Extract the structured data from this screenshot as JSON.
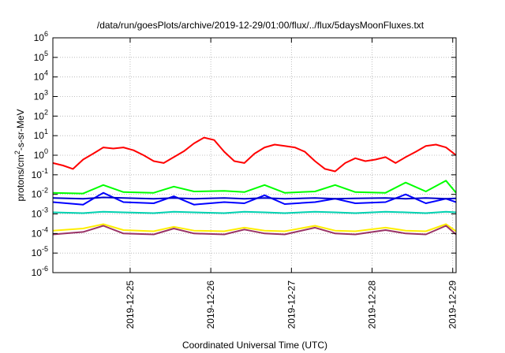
{
  "chart_data": {
    "type": "line",
    "title": "/data/run/goesPlots/archive/2019-12-29/01:00/flux/../flux/5daysMoonFluxes.txt",
    "xlabel": "Coordinated Universal Time (UTC)",
    "ylabel": {
      "base": "protons/cm",
      "sup": "2",
      "rest": "-s-sr-MeV"
    },
    "x_range": [
      "2019-12-24T01:00",
      "2019-12-29T01:00"
    ],
    "x_ticks": [
      "2019-12-25",
      "2019-12-26",
      "2019-12-27",
      "2019-12-28",
      "2019-12-29"
    ],
    "y_scale": "log",
    "ylim": [
      1e-06,
      1000000.0
    ],
    "y_ticks": [
      {
        "exp": "-6",
        "value": 1e-06
      },
      {
        "exp": "-5",
        "value": 1e-05
      },
      {
        "exp": "-4",
        "value": 0.0001
      },
      {
        "exp": "-3",
        "value": 0.001
      },
      {
        "exp": "-2",
        "value": 0.01
      },
      {
        "exp": "-1",
        "value": 0.1
      },
      {
        "exp": "0",
        "value": 1
      },
      {
        "exp": "1",
        "value": 10.0
      },
      {
        "exp": "2",
        "value": 100.0
      },
      {
        "exp": "3",
        "value": 1000.0
      },
      {
        "exp": "4",
        "value": 10000.0
      },
      {
        "exp": "5",
        "value": 100000.0
      },
      {
        "exp": "6",
        "value": 1000000.0
      }
    ],
    "grid": true,
    "series": [
      {
        "color": "#ff0000",
        "x": [
          "2019-12-24T01:00",
          "2019-12-24T04:00",
          "2019-12-24T07:00",
          "2019-12-24T10:00",
          "2019-12-24T13:00",
          "2019-12-24T16:00",
          "2019-12-24T19:00",
          "2019-12-24T22:00",
          "2019-12-25T01:00",
          "2019-12-25T04:00",
          "2019-12-25T07:00",
          "2019-12-25T10:00",
          "2019-12-25T13:00",
          "2019-12-25T16:00",
          "2019-12-25T19:00",
          "2019-12-25T22:00",
          "2019-12-26T01:00",
          "2019-12-26T04:00",
          "2019-12-26T07:00",
          "2019-12-26T10:00",
          "2019-12-26T13:00",
          "2019-12-26T16:00",
          "2019-12-26T19:00",
          "2019-12-26T22:00",
          "2019-12-27T01:00",
          "2019-12-27T04:00",
          "2019-12-27T07:00",
          "2019-12-27T10:00",
          "2019-12-27T13:00",
          "2019-12-27T16:00",
          "2019-12-27T19:00",
          "2019-12-27T22:00",
          "2019-12-28T01:00",
          "2019-12-28T04:00",
          "2019-12-28T07:00",
          "2019-12-28T10:00",
          "2019-12-28T13:00",
          "2019-12-28T16:00",
          "2019-12-28T19:00",
          "2019-12-28T22:00",
          "2019-12-29T01:00"
        ],
        "y": [
          0.4,
          0.3,
          0.2,
          0.6,
          1.2,
          2.5,
          2.2,
          2.5,
          1.8,
          1.0,
          0.5,
          0.4,
          0.8,
          1.6,
          4,
          8,
          6,
          1.5,
          0.5,
          0.4,
          1.2,
          2.5,
          3.5,
          3,
          2.5,
          1.5,
          0.5,
          0.2,
          0.15,
          0.4,
          0.7,
          0.5,
          0.6,
          0.8,
          0.4,
          0.8,
          1.5,
          3,
          3.5,
          2.5,
          1.0
        ]
      },
      {
        "color": "#00ff00",
        "x": [
          "2019-12-24T01:00",
          "2019-12-24T10:00",
          "2019-12-24T16:00",
          "2019-12-24T22:00",
          "2019-12-25T07:00",
          "2019-12-25T13:00",
          "2019-12-25T19:00",
          "2019-12-26T04:00",
          "2019-12-26T10:00",
          "2019-12-26T16:00",
          "2019-12-26T22:00",
          "2019-12-27T07:00",
          "2019-12-27T13:00",
          "2019-12-27T19:00",
          "2019-12-28T04:00",
          "2019-12-28T10:00",
          "2019-12-28T16:00",
          "2019-12-28T22:00",
          "2019-12-29T01:00"
        ],
        "y": [
          0.012,
          0.011,
          0.03,
          0.013,
          0.012,
          0.025,
          0.014,
          0.015,
          0.013,
          0.03,
          0.012,
          0.014,
          0.03,
          0.013,
          0.012,
          0.04,
          0.014,
          0.05,
          0.012
        ]
      },
      {
        "color": "#0000ff",
        "x": [
          "2019-12-24T01:00",
          "2019-12-24T10:00",
          "2019-12-24T16:00",
          "2019-12-24T22:00",
          "2019-12-25T07:00",
          "2019-12-25T13:00",
          "2019-12-25T19:00",
          "2019-12-26T04:00",
          "2019-12-26T10:00",
          "2019-12-26T16:00",
          "2019-12-26T22:00",
          "2019-12-27T07:00",
          "2019-12-27T13:00",
          "2019-12-27T19:00",
          "2019-12-28T04:00",
          "2019-12-28T10:00",
          "2019-12-28T16:00",
          "2019-12-28T22:00",
          "2019-12-29T01:00"
        ],
        "y": [
          0.004,
          0.003,
          0.012,
          0.004,
          0.0035,
          0.008,
          0.003,
          0.004,
          0.0035,
          0.009,
          0.0032,
          0.004,
          0.006,
          0.0035,
          0.004,
          0.01,
          0.0035,
          0.006,
          0.004
        ]
      },
      {
        "color": "#0000cc",
        "x": [
          "2019-12-24T01:00",
          "2019-12-24T10:00",
          "2019-12-24T16:00",
          "2019-12-24T22:00",
          "2019-12-25T07:00",
          "2019-12-25T13:00",
          "2019-12-25T19:00",
          "2019-12-26T04:00",
          "2019-12-26T10:00",
          "2019-12-26T16:00",
          "2019-12-26T22:00",
          "2019-12-27T07:00",
          "2019-12-27T13:00",
          "2019-12-27T19:00",
          "2019-12-28T04:00",
          "2019-12-28T10:00",
          "2019-12-28T16:00",
          "2019-12-28T22:00",
          "2019-12-29T01:00"
        ],
        "y": [
          0.0065,
          0.006,
          0.007,
          0.0065,
          0.006,
          0.0065,
          0.006,
          0.0065,
          0.006,
          0.0065,
          0.006,
          0.0065,
          0.006,
          0.0062,
          0.0065,
          0.006,
          0.0065,
          0.006,
          0.0062
        ]
      },
      {
        "color": "#00d0b0",
        "x": [
          "2019-12-24T01:00",
          "2019-12-24T10:00",
          "2019-12-24T16:00",
          "2019-12-24T22:00",
          "2019-12-25T07:00",
          "2019-12-25T13:00",
          "2019-12-25T19:00",
          "2019-12-26T04:00",
          "2019-12-26T10:00",
          "2019-12-26T16:00",
          "2019-12-26T22:00",
          "2019-12-27T07:00",
          "2019-12-27T13:00",
          "2019-12-27T19:00",
          "2019-12-28T04:00",
          "2019-12-28T10:00",
          "2019-12-28T16:00",
          "2019-12-28T22:00",
          "2019-12-29T01:00"
        ],
        "y": [
          0.0012,
          0.0011,
          0.0013,
          0.0012,
          0.0011,
          0.0013,
          0.0012,
          0.0011,
          0.0013,
          0.0012,
          0.0011,
          0.0013,
          0.0012,
          0.0011,
          0.0013,
          0.0012,
          0.0011,
          0.0013,
          0.0012
        ]
      },
      {
        "color": "#ffee00",
        "x": [
          "2019-12-24T01:00",
          "2019-12-24T10:00",
          "2019-12-24T16:00",
          "2019-12-24T22:00",
          "2019-12-25T07:00",
          "2019-12-25T13:00",
          "2019-12-25T19:00",
          "2019-12-26T04:00",
          "2019-12-26T10:00",
          "2019-12-26T16:00",
          "2019-12-26T22:00",
          "2019-12-27T07:00",
          "2019-12-27T13:00",
          "2019-12-27T19:00",
          "2019-12-28T04:00",
          "2019-12-28T10:00",
          "2019-12-28T16:00",
          "2019-12-28T22:00",
          "2019-12-29T01:00"
        ],
        "y": [
          0.00014,
          0.00018,
          0.0003,
          0.00015,
          0.00013,
          0.00022,
          0.00014,
          0.00013,
          0.0002,
          0.00014,
          0.00013,
          0.00025,
          0.00014,
          0.00013,
          0.0002,
          0.00014,
          0.00013,
          0.0003,
          0.00013
        ]
      },
      {
        "color": "#993366",
        "x": [
          "2019-12-24T01:00",
          "2019-12-24T10:00",
          "2019-12-24T16:00",
          "2019-12-24T22:00",
          "2019-12-25T07:00",
          "2019-12-25T13:00",
          "2019-12-25T19:00",
          "2019-12-26T04:00",
          "2019-12-26T10:00",
          "2019-12-26T16:00",
          "2019-12-26T22:00",
          "2019-12-27T07:00",
          "2019-12-27T13:00",
          "2019-12-27T19:00",
          "2019-12-28T04:00",
          "2019-12-28T10:00",
          "2019-12-28T16:00",
          "2019-12-28T22:00",
          "2019-12-29T01:00"
        ],
        "y": [
          9e-05,
          0.00012,
          0.00025,
          0.0001,
          9e-05,
          0.00018,
          0.0001,
          9e-05,
          0.00016,
          0.0001,
          9e-05,
          0.0002,
          0.0001,
          9e-05,
          0.00015,
          0.0001,
          9e-05,
          0.00025,
          9e-05
        ]
      }
    ]
  }
}
